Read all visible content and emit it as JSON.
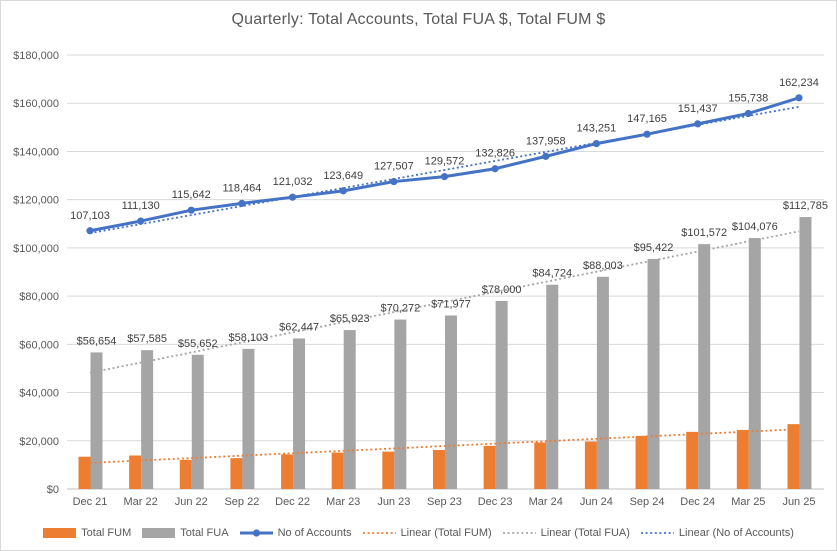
{
  "chart": {
    "title": "Quarterly: Total Accounts, Total FUA $, Total FUM $"
  },
  "chart_data": {
    "type": "combo-bar-line",
    "title": "Quarterly: Total Accounts, Total FUA $, Total FUM $",
    "categories": [
      "Dec 21",
      "Mar 22",
      "Jun 22",
      "Sep 22",
      "Dec 22",
      "Mar 23",
      "Jun 23",
      "Sep 23",
      "Dec 23",
      "Mar 24",
      "Jun 24",
      "Sep 24",
      "Dec 24",
      "Mar 25",
      "Jun 25"
    ],
    "series": [
      {
        "name": "Total FUM",
        "type": "bar",
        "color": "#ED7D31",
        "data_labels_shown": false,
        "values_estimated": true,
        "values": [
          13400,
          13900,
          12100,
          12800,
          14300,
          15100,
          15500,
          16200,
          17900,
          19300,
          19700,
          22000,
          23700,
          24500,
          26900
        ]
      },
      {
        "name": "Total FUA",
        "type": "bar",
        "color": "#A5A5A5",
        "data_labels_shown": true,
        "label_prefix": "$",
        "values": [
          56654,
          57585,
          55652,
          58103,
          62447,
          65923,
          70272,
          71977,
          78000,
          84724,
          88003,
          95422,
          101572,
          104076,
          112785
        ]
      },
      {
        "name": "No of Accounts",
        "type": "line",
        "color": "#4472C4",
        "data_labels_shown": true,
        "label_prefix": "",
        "values": [
          107103,
          111130,
          115642,
          118464,
          121032,
          123649,
          127507,
          129572,
          132826,
          137958,
          143251,
          147165,
          151437,
          155738,
          162234
        ]
      }
    ],
    "trendlines": [
      {
        "name": "Linear (Total FUM)",
        "series_index": 0,
        "color": "#ED7D31"
      },
      {
        "name": "Linear (Total FUA)",
        "series_index": 1,
        "color": "#A5A5A5"
      },
      {
        "name": "Linear (No of Accounts)",
        "series_index": 2,
        "color": "#4472C4"
      }
    ],
    "y_axis": {
      "min": 0,
      "max": 180000,
      "step": 20000,
      "tick_labels": [
        "$0",
        "$20,000",
        "$40,000",
        "$60,000",
        "$80,000",
        "$100,000",
        "$120,000",
        "$140,000",
        "$160,000",
        "$180,000"
      ]
    },
    "grid": true,
    "legend_position": "bottom",
    "legend": [
      {
        "label": "Total FUM",
        "swatch": "bar",
        "color": "#ED7D31"
      },
      {
        "label": "Total FUA",
        "swatch": "bar",
        "color": "#A5A5A5"
      },
      {
        "label": "No of Accounts",
        "swatch": "line-marker",
        "color": "#4472C4"
      },
      {
        "label": "Linear (Total FUM)",
        "swatch": "dotted",
        "color": "#ED7D31"
      },
      {
        "label": "Linear (Total FUA)",
        "swatch": "dotted",
        "color": "#A5A5A5"
      },
      {
        "label": "Linear (No of Accounts)",
        "swatch": "dotted",
        "color": "#4472C4"
      }
    ]
  },
  "colors": {
    "background": "#FFFFFF",
    "border": "#D9D9D9",
    "gridline": "#D9D9D9",
    "axis_line": "#BFBFBF",
    "tick_text": "#595959",
    "data_label_text": "#404040",
    "title_text": "#595959"
  }
}
